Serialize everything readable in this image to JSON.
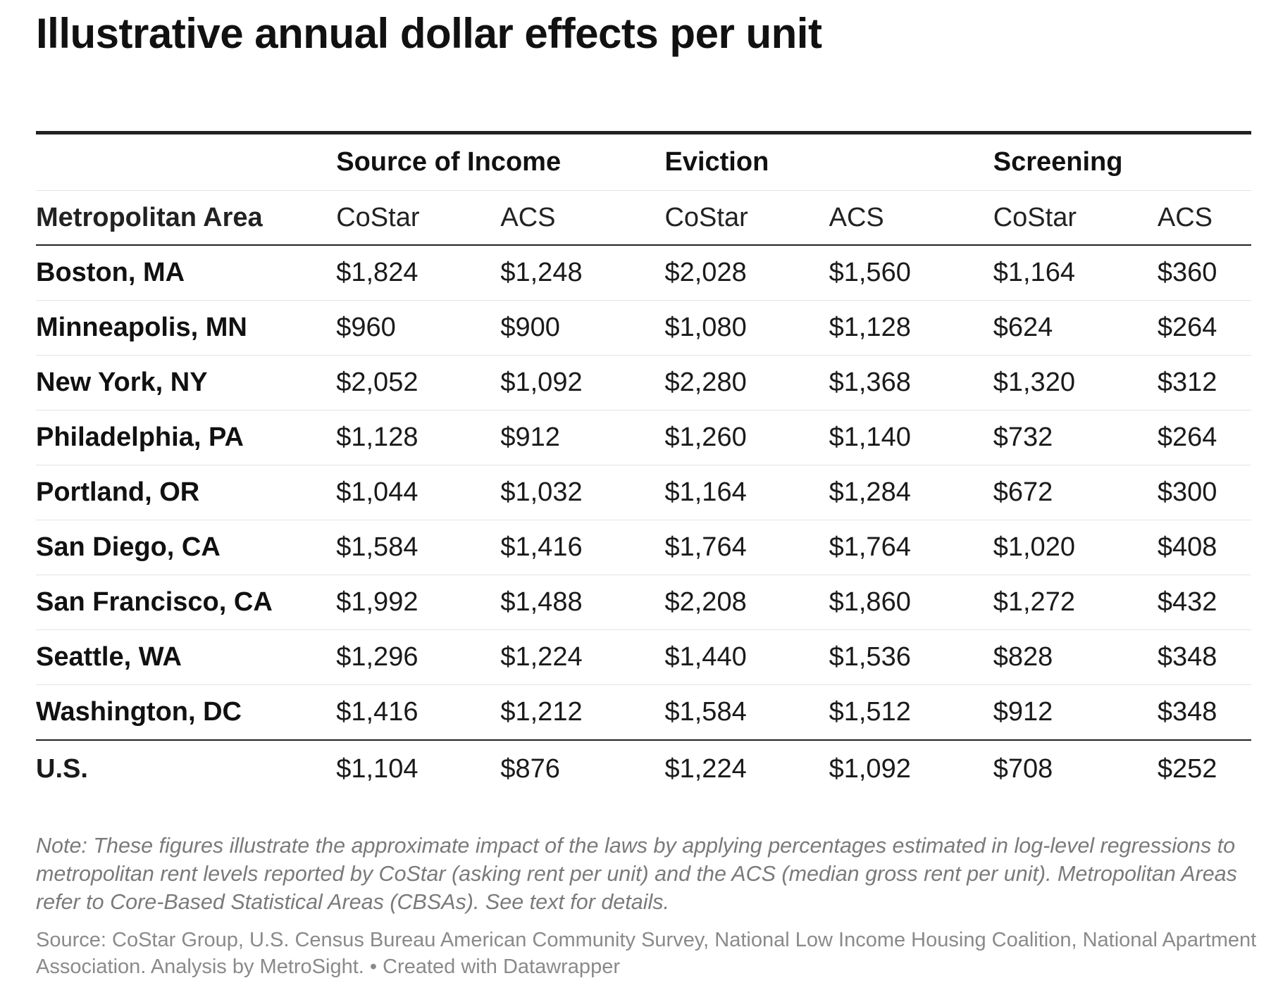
{
  "chart_data": {
    "type": "table",
    "title": "Illustrative annual dollar effects per unit",
    "groups": [
      "Source of Income",
      "Eviction",
      "Screening"
    ],
    "columns": [
      "Metropolitan Area",
      "CoStar",
      "ACS",
      "CoStar",
      "ACS",
      "CoStar",
      "ACS"
    ],
    "rows": [
      {
        "area": "Boston, MA",
        "values": [
          "$1,824",
          "$1,248",
          "$2,028",
          "$1,560",
          "$1,164",
          "$360"
        ]
      },
      {
        "area": "Minneapolis, MN",
        "values": [
          "$960",
          "$900",
          "$1,080",
          "$1,128",
          "$624",
          "$264"
        ]
      },
      {
        "area": "New York, NY",
        "values": [
          "$2,052",
          "$1,092",
          "$2,280",
          "$1,368",
          "$1,320",
          "$312"
        ]
      },
      {
        "area": "Philadelphia, PA",
        "values": [
          "$1,128",
          "$912",
          "$1,260",
          "$1,140",
          "$732",
          "$264"
        ]
      },
      {
        "area": "Portland, OR",
        "values": [
          "$1,044",
          "$1,032",
          "$1,164",
          "$1,284",
          "$672",
          "$300"
        ]
      },
      {
        "area": "San Diego, CA",
        "values": [
          "$1,584",
          "$1,416",
          "$1,764",
          "$1,764",
          "$1,020",
          "$408"
        ]
      },
      {
        "area": "San Francisco, CA",
        "values": [
          "$1,992",
          "$1,488",
          "$2,208",
          "$1,860",
          "$1,272",
          "$432"
        ]
      },
      {
        "area": "Seattle, WA",
        "values": [
          "$1,296",
          "$1,224",
          "$1,440",
          "$1,536",
          "$828",
          "$348"
        ]
      },
      {
        "area": "Washington, DC",
        "values": [
          "$1,416",
          "$1,212",
          "$1,584",
          "$1,512",
          "$912",
          "$348"
        ]
      }
    ],
    "total": {
      "area": "U.S.",
      "values": [
        "$1,104",
        "$876",
        "$1,224",
        "$1,092",
        "$708",
        "$252"
      ]
    },
    "note": "Note: These figures illustrate the approximate impact of the laws by applying percentages estimated in log-level regressions to metropolitan rent levels reported by CoStar (asking rent per unit) and the ACS (median gross rent per unit). Metropolitan Areas refer to Core-Based Statistical Areas (CBSAs). See text for details.",
    "source": "Source: CoStar Group, U.S. Census Bureau American Community Survey, National Low Income Housing Coalition, National Apartment Association. Analysis by MetroSight. • Created with Datawrapper"
  }
}
